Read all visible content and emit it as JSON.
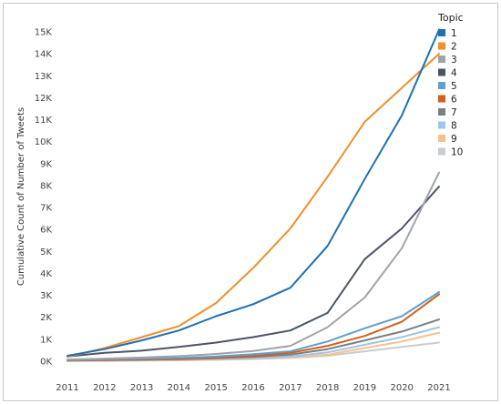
{
  "chart_data": {
    "type": "line",
    "title": "",
    "xlabel": "",
    "ylabel": "Cumulative Count of Number of Tweets",
    "x": [
      2011,
      2012,
      2013,
      2014,
      2015,
      2016,
      2017,
      2018,
      2019,
      2020,
      2021
    ],
    "ylim": [
      0,
      15000
    ],
    "yticks": [
      "0K",
      "1K",
      "2K",
      "3K",
      "4K",
      "5K",
      "6K",
      "7K",
      "8K",
      "9K",
      "10K",
      "11K",
      "12K",
      "13K",
      "14K",
      "15K"
    ],
    "grid": false,
    "legend": {
      "title": "Topic",
      "placement": "right"
    },
    "series": [
      {
        "name": "1",
        "color": "#1f6fb2",
        "values": [
          250,
          550,
          950,
          1400,
          2050,
          2600,
          3350,
          5250,
          8300,
          11200,
          15100
        ]
      },
      {
        "name": "2",
        "color": "#f28e2b",
        "values": [
          200,
          600,
          1100,
          1600,
          2650,
          4250,
          6050,
          8400,
          10900,
          12450,
          14000
        ]
      },
      {
        "name": "3",
        "color": "#a0a3a8",
        "values": [
          80,
          120,
          170,
          230,
          330,
          470,
          700,
          1550,
          2900,
          5150,
          8600
        ]
      },
      {
        "name": "4",
        "color": "#4d5466",
        "values": [
          220,
          380,
          480,
          650,
          850,
          1100,
          1400,
          2200,
          4650,
          6050,
          7950
        ]
      },
      {
        "name": "5",
        "color": "#5fa0d0",
        "values": [
          60,
          90,
          120,
          150,
          220,
          320,
          450,
          900,
          1500,
          2050,
          3150
        ]
      },
      {
        "name": "6",
        "color": "#d45f1a",
        "values": [
          40,
          60,
          80,
          100,
          160,
          250,
          380,
          700,
          1150,
          1800,
          3050
        ]
      },
      {
        "name": "7",
        "color": "#7a7f85",
        "values": [
          30,
          50,
          70,
          90,
          140,
          200,
          300,
          550,
          950,
          1350,
          1900
        ]
      },
      {
        "name": "8",
        "color": "#9fc5e8",
        "values": [
          20,
          35,
          50,
          70,
          100,
          150,
          220,
          400,
          750,
          1100,
          1550
        ]
      },
      {
        "name": "9",
        "color": "#f6c08a",
        "values": [
          15,
          25,
          40,
          55,
          80,
          120,
          180,
          300,
          600,
          900,
          1300
        ]
      },
      {
        "name": "10",
        "color": "#c9ccd0",
        "values": [
          10,
          20,
          30,
          45,
          65,
          100,
          150,
          250,
          450,
          650,
          850
        ]
      }
    ]
  }
}
